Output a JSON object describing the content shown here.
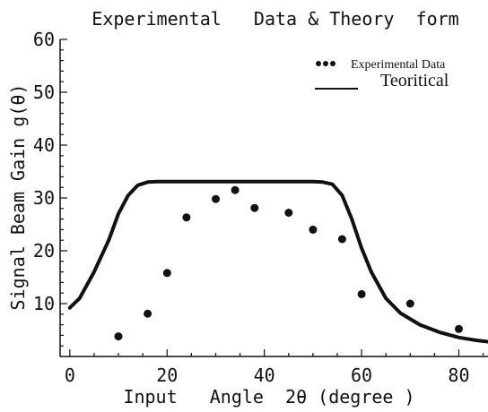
{
  "chart_data": {
    "type": "line",
    "title": "Experimental   Data & Theory  form",
    "xlabel": "Input   Angle  2θ (degree )",
    "ylabel": "Signal Beam Gain g(θ)",
    "xlim": [
      -2,
      86
    ],
    "ylim": [
      0,
      60
    ],
    "x_ticks": [
      0,
      20,
      40,
      60,
      80
    ],
    "y_ticks": [
      10,
      20,
      30,
      40,
      50,
      60
    ],
    "grid": false,
    "legend_position": "top-right",
    "series": [
      {
        "name": "Experimental Data",
        "kind": "scatter",
        "color": "#111111",
        "points": [
          [
            10,
            3.8
          ],
          [
            16,
            8.1
          ],
          [
            20,
            15.8
          ],
          [
            24,
            26.3
          ],
          [
            30,
            29.8
          ],
          [
            34,
            31.5
          ],
          [
            38,
            28.1
          ],
          [
            45,
            27.2
          ],
          [
            50,
            24.0
          ],
          [
            56,
            22.2
          ],
          [
            60,
            11.8
          ],
          [
            70,
            10.0
          ],
          [
            80,
            5.2
          ]
        ]
      },
      {
        "name": "Teoritical",
        "kind": "line",
        "color": "#111111",
        "points": [
          [
            0,
            9.2
          ],
          [
            2,
            11.0
          ],
          [
            5,
            16.0
          ],
          [
            8,
            22.0
          ],
          [
            10,
            27.0
          ],
          [
            12,
            30.5
          ],
          [
            14,
            32.4
          ],
          [
            16,
            33.0
          ],
          [
            18,
            33.1
          ],
          [
            30,
            33.1
          ],
          [
            40,
            33.1
          ],
          [
            50,
            33.1
          ],
          [
            52,
            33.0
          ],
          [
            54,
            32.6
          ],
          [
            56,
            30.5
          ],
          [
            58,
            26.0
          ],
          [
            60,
            20.5
          ],
          [
            62,
            16.0
          ],
          [
            65,
            11.0
          ],
          [
            68,
            8.2
          ],
          [
            72,
            6.0
          ],
          [
            76,
            4.6
          ],
          [
            80,
            3.6
          ],
          [
            84,
            3.0
          ],
          [
            86,
            2.8
          ]
        ]
      }
    ]
  }
}
